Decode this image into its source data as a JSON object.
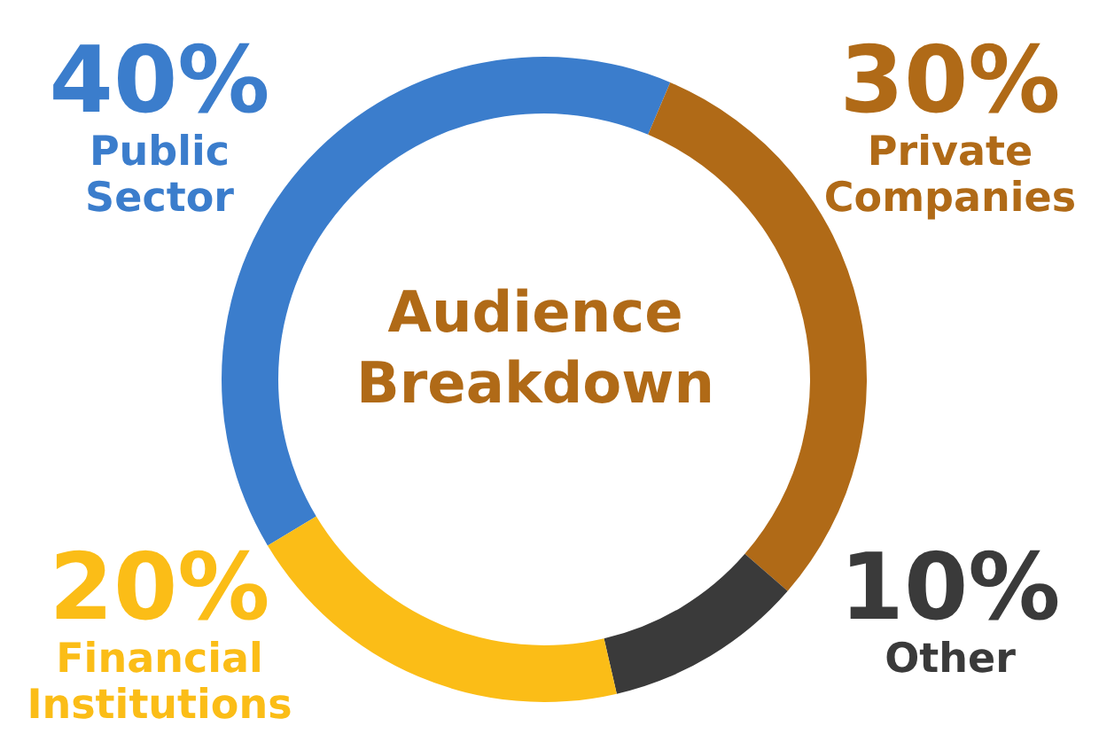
{
  "chart_data": {
    "type": "donut",
    "title": "Audience Breakdown",
    "categories": [
      "Public Sector",
      "Private Companies",
      "Other",
      "Financial Institutions"
    ],
    "values": [
      40,
      30,
      10,
      20
    ],
    "colors": [
      "#3b7dcc",
      "#b06a17",
      "#3a3a3a",
      "#fbbd17"
    ],
    "value_labels": [
      "40%",
      "30%",
      "10%",
      "20%"
    ]
  }
}
